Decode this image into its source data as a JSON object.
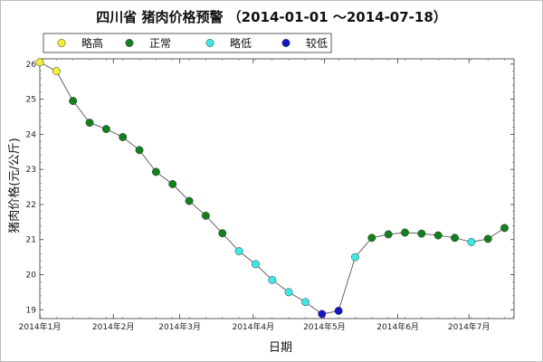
{
  "chart_data": {
    "type": "scatter",
    "title": "四川省 猪肉价格预警 （2014-01-01 ～2014-07-18）",
    "xlabel": "日期",
    "ylabel": "猪肉价格(元/公斤)",
    "xlim": [
      "2014-01-01",
      "2014-07-20"
    ],
    "ylim": [
      18.75,
      26.15
    ],
    "yticks": [
      19,
      20,
      21,
      22,
      23,
      24,
      25,
      26
    ],
    "xticks": [
      {
        "date": "2014-01-01",
        "label": "2014年1月"
      },
      {
        "date": "2014-02-01",
        "label": "2014年2月"
      },
      {
        "date": "2014-03-01",
        "label": "2014年3月"
      },
      {
        "date": "2014-04-01",
        "label": "2014年4月"
      },
      {
        "date": "2014-05-01",
        "label": "2014年5月"
      },
      {
        "date": "2014-06-01",
        "label": "2014年6月"
      },
      {
        "date": "2014-07-01",
        "label": "2014年7月"
      }
    ],
    "grid": false,
    "legend_position": "top",
    "line_color": "#555555",
    "legend": [
      {
        "key": "slightly_high",
        "name": "略高",
        "color": "#f2ef3a"
      },
      {
        "key": "normal",
        "name": "正常",
        "color": "#137f1d"
      },
      {
        "key": "slightly_low",
        "name": "略低",
        "color": "#3ce9e6"
      },
      {
        "key": "lower",
        "name": "较低",
        "color": "#1414c8"
      }
    ],
    "points": [
      {
        "x": "2014-01-01",
        "y": 26.05,
        "level": "slightly_high"
      },
      {
        "x": "2014-01-08",
        "y": 25.8,
        "level": "slightly_high"
      },
      {
        "x": "2014-01-15",
        "y": 24.95,
        "level": "normal"
      },
      {
        "x": "2014-01-22",
        "y": 24.33,
        "level": "normal"
      },
      {
        "x": "2014-01-29",
        "y": 24.15,
        "level": "normal"
      },
      {
        "x": "2014-02-05",
        "y": 23.92,
        "level": "normal"
      },
      {
        "x": "2014-02-12",
        "y": 23.55,
        "level": "normal"
      },
      {
        "x": "2014-02-19",
        "y": 22.93,
        "level": "normal"
      },
      {
        "x": "2014-02-26",
        "y": 22.58,
        "level": "normal"
      },
      {
        "x": "2014-03-05",
        "y": 22.1,
        "level": "normal"
      },
      {
        "x": "2014-03-12",
        "y": 21.68,
        "level": "normal"
      },
      {
        "x": "2014-03-19",
        "y": 21.18,
        "level": "normal"
      },
      {
        "x": "2014-03-26",
        "y": 20.67,
        "level": "slightly_low"
      },
      {
        "x": "2014-04-02",
        "y": 20.3,
        "level": "slightly_low"
      },
      {
        "x": "2014-04-09",
        "y": 19.85,
        "level": "slightly_low"
      },
      {
        "x": "2014-04-16",
        "y": 19.5,
        "level": "slightly_low"
      },
      {
        "x": "2014-04-23",
        "y": 19.22,
        "level": "slightly_low"
      },
      {
        "x": "2014-04-30",
        "y": 18.88,
        "level": "lower"
      },
      {
        "x": "2014-05-07",
        "y": 18.97,
        "level": "lower"
      },
      {
        "x": "2014-05-14",
        "y": 20.5,
        "level": "slightly_low"
      },
      {
        "x": "2014-05-21",
        "y": 21.05,
        "level": "normal"
      },
      {
        "x": "2014-05-28",
        "y": 21.15,
        "level": "normal"
      },
      {
        "x": "2014-06-04",
        "y": 21.2,
        "level": "normal"
      },
      {
        "x": "2014-06-11",
        "y": 21.17,
        "level": "normal"
      },
      {
        "x": "2014-06-18",
        "y": 21.12,
        "level": "normal"
      },
      {
        "x": "2014-06-25",
        "y": 21.05,
        "level": "normal"
      },
      {
        "x": "2014-07-02",
        "y": 20.93,
        "level": "slightly_low"
      },
      {
        "x": "2014-07-09",
        "y": 21.02,
        "level": "normal"
      },
      {
        "x": "2014-07-16",
        "y": 21.33,
        "level": "normal"
      }
    ]
  }
}
